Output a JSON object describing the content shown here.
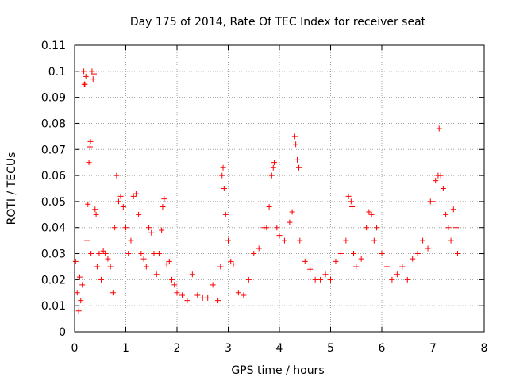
{
  "chart_data": {
    "type": "scatter",
    "title": "Day 175 of 2014, Rate Of TEC Index for receiver seat",
    "xlabel": "GPS time / hours",
    "ylabel": "ROTI / TECUs",
    "xlim": [
      0,
      8
    ],
    "ylim": [
      0,
      0.11
    ],
    "xticks": [
      "0",
      "1",
      "2",
      "3",
      "4",
      "5",
      "6",
      "7",
      "8"
    ],
    "yticks": [
      "0",
      "0.01",
      "0.02",
      "0.03",
      "0.04",
      "0.05",
      "0.06",
      "0.07",
      "0.08",
      "0.09",
      "0.1",
      "0.11"
    ],
    "grid": true,
    "marker": "+",
    "marker_color": "#ff0000",
    "series": [
      {
        "name": "ROTI",
        "points": [
          [
            0.02,
            0.027
          ],
          [
            0.05,
            0.015
          ],
          [
            0.08,
            0.008
          ],
          [
            0.1,
            0.021
          ],
          [
            0.12,
            0.012
          ],
          [
            0.15,
            0.018
          ],
          [
            0.18,
            0.1
          ],
          [
            0.19,
            0.095
          ],
          [
            0.2,
            0.095
          ],
          [
            0.22,
            0.098
          ],
          [
            0.24,
            0.035
          ],
          [
            0.26,
            0.049
          ],
          [
            0.28,
            0.065
          ],
          [
            0.3,
            0.071
          ],
          [
            0.31,
            0.073
          ],
          [
            0.32,
            0.03
          ],
          [
            0.34,
            0.1
          ],
          [
            0.36,
            0.097
          ],
          [
            0.38,
            0.099
          ],
          [
            0.4,
            0.047
          ],
          [
            0.42,
            0.045
          ],
          [
            0.44,
            0.025
          ],
          [
            0.48,
            0.03
          ],
          [
            0.52,
            0.02
          ],
          [
            0.56,
            0.031
          ],
          [
            0.6,
            0.03
          ],
          [
            0.65,
            0.028
          ],
          [
            0.7,
            0.025
          ],
          [
            0.75,
            0.015
          ],
          [
            0.78,
            0.04
          ],
          [
            0.82,
            0.06
          ],
          [
            0.86,
            0.05
          ],
          [
            0.9,
            0.052
          ],
          [
            0.95,
            0.048
          ],
          [
            1.0,
            0.04
          ],
          [
            1.05,
            0.03
          ],
          [
            1.1,
            0.035
          ],
          [
            1.15,
            0.052
          ],
          [
            1.2,
            0.053
          ],
          [
            1.25,
            0.045
          ],
          [
            1.3,
            0.03
          ],
          [
            1.35,
            0.028
          ],
          [
            1.4,
            0.025
          ],
          [
            1.45,
            0.04
          ],
          [
            1.5,
            0.038
          ],
          [
            1.55,
            0.03
          ],
          [
            1.6,
            0.022
          ],
          [
            1.65,
            0.03
          ],
          [
            1.7,
            0.039
          ],
          [
            1.72,
            0.048
          ],
          [
            1.75,
            0.051
          ],
          [
            1.8,
            0.026
          ],
          [
            1.85,
            0.027
          ],
          [
            1.9,
            0.02
          ],
          [
            1.95,
            0.018
          ],
          [
            2.0,
            0.015
          ],
          [
            2.1,
            0.014
          ],
          [
            2.2,
            0.012
          ],
          [
            2.3,
            0.022
          ],
          [
            2.4,
            0.014
          ],
          [
            2.5,
            0.013
          ],
          [
            2.6,
            0.013
          ],
          [
            2.7,
            0.018
          ],
          [
            2.8,
            0.012
          ],
          [
            2.85,
            0.025
          ],
          [
            2.88,
            0.06
          ],
          [
            2.9,
            0.063
          ],
          [
            2.92,
            0.055
          ],
          [
            2.95,
            0.045
          ],
          [
            3.0,
            0.035
          ],
          [
            3.05,
            0.027
          ],
          [
            3.1,
            0.026
          ],
          [
            3.2,
            0.015
          ],
          [
            3.3,
            0.014
          ],
          [
            3.4,
            0.02
          ],
          [
            3.5,
            0.03
          ],
          [
            3.6,
            0.032
          ],
          [
            3.7,
            0.04
          ],
          [
            3.75,
            0.04
          ],
          [
            3.8,
            0.048
          ],
          [
            3.85,
            0.06
          ],
          [
            3.88,
            0.063
          ],
          [
            3.9,
            0.065
          ],
          [
            3.95,
            0.04
          ],
          [
            4.0,
            0.037
          ],
          [
            4.1,
            0.035
          ],
          [
            4.2,
            0.042
          ],
          [
            4.25,
            0.046
          ],
          [
            4.3,
            0.075
          ],
          [
            4.32,
            0.072
          ],
          [
            4.35,
            0.066
          ],
          [
            4.38,
            0.063
          ],
          [
            4.4,
            0.035
          ],
          [
            4.5,
            0.027
          ],
          [
            4.6,
            0.024
          ],
          [
            4.7,
            0.02
          ],
          [
            4.8,
            0.02
          ],
          [
            4.9,
            0.022
          ],
          [
            5.0,
            0.02
          ],
          [
            5.1,
            0.027
          ],
          [
            5.2,
            0.03
          ],
          [
            5.3,
            0.035
          ],
          [
            5.35,
            0.052
          ],
          [
            5.4,
            0.05
          ],
          [
            5.42,
            0.048
          ],
          [
            5.45,
            0.03
          ],
          [
            5.5,
            0.025
          ],
          [
            5.6,
            0.028
          ],
          [
            5.7,
            0.04
          ],
          [
            5.75,
            0.046
          ],
          [
            5.8,
            0.045
          ],
          [
            5.85,
            0.035
          ],
          [
            5.9,
            0.04
          ],
          [
            6.0,
            0.03
          ],
          [
            6.1,
            0.025
          ],
          [
            6.2,
            0.02
          ],
          [
            6.3,
            0.022
          ],
          [
            6.4,
            0.025
          ],
          [
            6.5,
            0.02
          ],
          [
            6.6,
            0.028
          ],
          [
            6.7,
            0.03
          ],
          [
            6.8,
            0.035
          ],
          [
            6.9,
            0.032
          ],
          [
            6.95,
            0.05
          ],
          [
            7.0,
            0.05
          ],
          [
            7.05,
            0.058
          ],
          [
            7.1,
            0.06
          ],
          [
            7.12,
            0.078
          ],
          [
            7.15,
            0.06
          ],
          [
            7.2,
            0.055
          ],
          [
            7.25,
            0.045
          ],
          [
            7.3,
            0.04
          ],
          [
            7.35,
            0.035
          ],
          [
            7.4,
            0.047
          ],
          [
            7.45,
            0.04
          ],
          [
            7.48,
            0.03
          ]
        ]
      }
    ]
  }
}
